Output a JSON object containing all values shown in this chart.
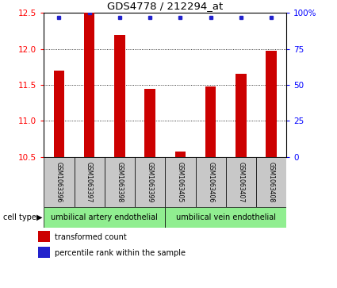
{
  "title": "GDS4778 / 212294_at",
  "samples": [
    "GSM1063396",
    "GSM1063397",
    "GSM1063398",
    "GSM1063399",
    "GSM1063405",
    "GSM1063406",
    "GSM1063407",
    "GSM1063408"
  ],
  "red_values": [
    11.7,
    12.5,
    12.2,
    11.45,
    10.58,
    11.48,
    11.65,
    11.98
  ],
  "blue_values": [
    97,
    100,
    97,
    97,
    97,
    97,
    97,
    97
  ],
  "ylim_left": [
    10.5,
    12.5
  ],
  "ylim_right": [
    0,
    100
  ],
  "yticks_left": [
    10.5,
    11.0,
    11.5,
    12.0,
    12.5
  ],
  "yticks_right": [
    0,
    25,
    50,
    75,
    100
  ],
  "ytick_right_labels": [
    "0",
    "25",
    "50",
    "75",
    "100%"
  ],
  "cell_types": [
    {
      "label": "umbilical artery endothelial",
      "start": 0,
      "end": 3,
      "color": "#90EE90"
    },
    {
      "label": "umbilical vein endothelial",
      "start": 4,
      "end": 7,
      "color": "#90EE90"
    }
  ],
  "bar_color": "#CC0000",
  "dot_color": "#2222CC",
  "label_box_color": "#C8C8C8",
  "legend_red_label": "transformed count",
  "legend_blue_label": "percentile rank within the sample",
  "cell_type_label": "cell type",
  "bar_width": 0.35
}
